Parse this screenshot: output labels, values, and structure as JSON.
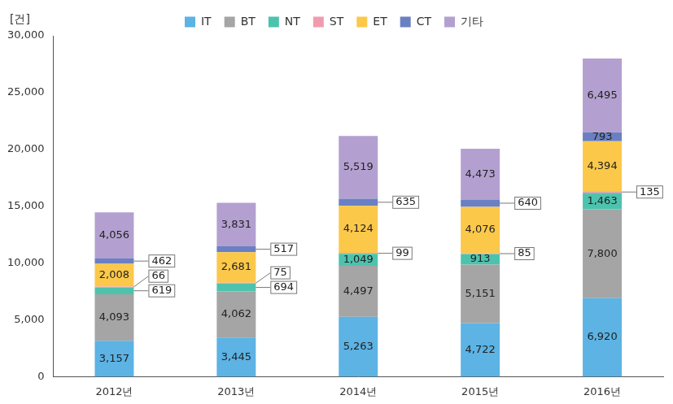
{
  "chart_data": {
    "type": "bar",
    "y_label": "[건]",
    "categories": [
      "2012년",
      "2013년",
      "2014년",
      "2015년",
      "2016년"
    ],
    "series": [
      {
        "name": "IT",
        "color": "#5cb3e4",
        "values": [
          3157,
          3445,
          5263,
          4722,
          6920
        ],
        "value_labels": [
          "3,157",
          "3,445",
          "5,263",
          "4,722",
          "6,920"
        ]
      },
      {
        "name": "BT",
        "color": "#a5a5a5",
        "values": [
          4093,
          4062,
          4497,
          5151,
          7800
        ],
        "value_labels": [
          "4,093",
          "4,062",
          "4,497",
          "5,151",
          "7,800"
        ]
      },
      {
        "name": "NT",
        "color": "#4dc3ae",
        "values": [
          619,
          694,
          1049,
          913,
          1463
        ],
        "value_labels": [
          "619",
          "694",
          "1,049",
          "913",
          "1,463"
        ]
      },
      {
        "name": "ST",
        "color": "#f29bb0",
        "values": [
          66,
          75,
          99,
          85,
          135
        ],
        "value_labels": [
          "66",
          "75",
          "99",
          "85",
          "135"
        ]
      },
      {
        "name": "ET",
        "color": "#fbc84a",
        "values": [
          2008,
          2681,
          4124,
          4076,
          4394
        ],
        "value_labels": [
          "2,008",
          "2,681",
          "4,124",
          "4,076",
          "4,394"
        ]
      },
      {
        "name": "CT",
        "color": "#6a80c3",
        "values": [
          462,
          517,
          635,
          640,
          793
        ],
        "value_labels": [
          "462",
          "517",
          "635",
          "640",
          "793"
        ]
      },
      {
        "name": "기타",
        "color": "#b3a0d0",
        "values": [
          4056,
          3831,
          5519,
          4473,
          6495
        ],
        "value_labels": [
          "4,056",
          "3,831",
          "5,519",
          "4,473",
          "6,495"
        ]
      }
    ],
    "ylim": [
      0,
      30000
    ],
    "yticks": [
      0,
      {
        "value": 5000,
        "label": "5,000"
      },
      {
        "value": 10000,
        "label": "10,000"
      },
      {
        "value": 15000,
        "label": "15,000"
      },
      {
        "value": 20000,
        "label": "20,000"
      },
      {
        "value": 25000,
        "label": "25,000"
      },
      {
        "value": 30000,
        "label": "30,000"
      }
    ],
    "stacked": true,
    "grid": false,
    "legend": "top",
    "data_labels": true
  }
}
